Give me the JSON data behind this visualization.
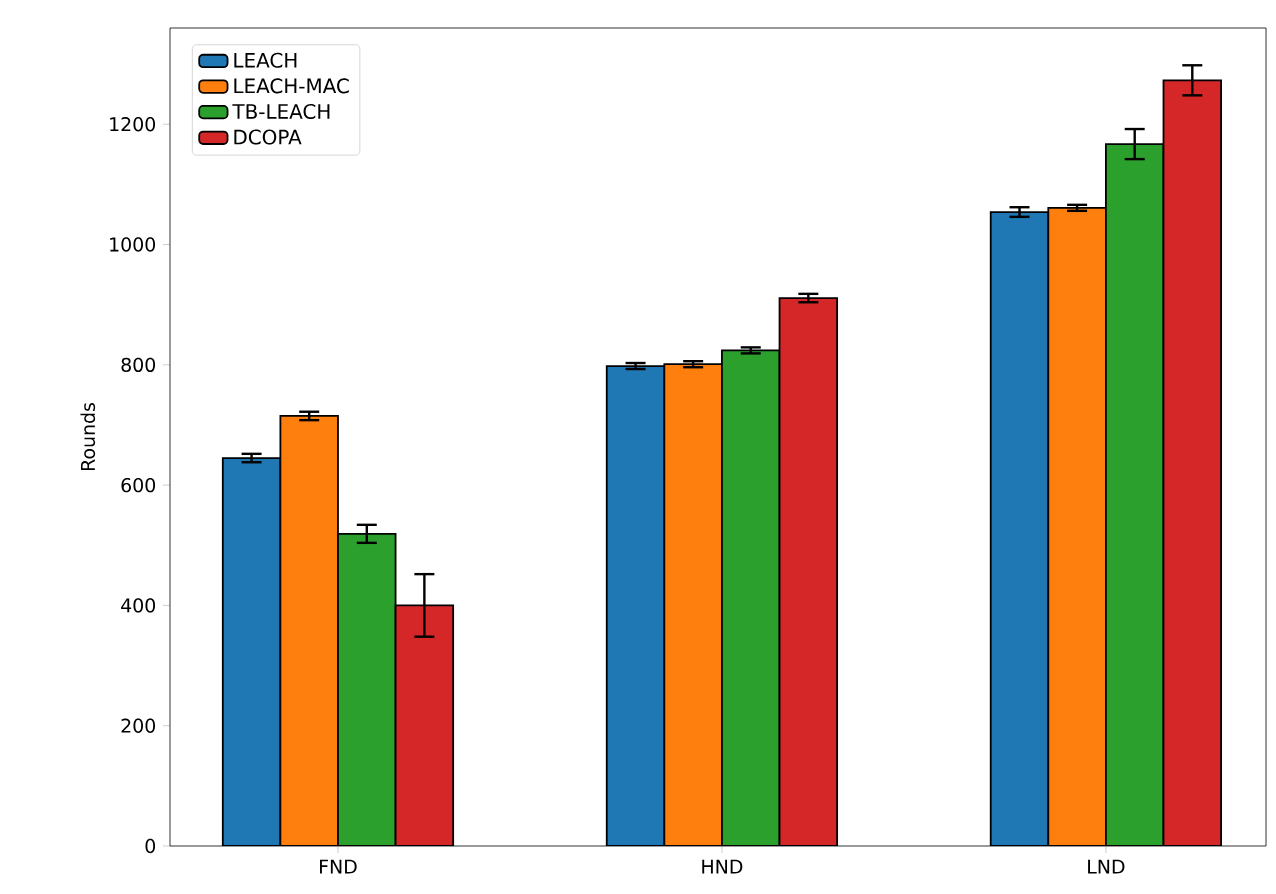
{
  "chart_data": {
    "type": "bar",
    "ylabel": "Rounds",
    "categories": [
      "FND",
      "HND",
      "LND"
    ],
    "series": [
      {
        "name": "LEACH",
        "color": "#1f77b4",
        "values": [
          645,
          798,
          1054
        ],
        "errors": [
          7,
          5,
          8
        ]
      },
      {
        "name": "LEACH-MAC",
        "color": "#ff7f0e",
        "values": [
          715,
          801,
          1061
        ],
        "errors": [
          7,
          5,
          5
        ]
      },
      {
        "name": "TB-LEACH",
        "color": "#2ca02c",
        "values": [
          519,
          824,
          1167
        ],
        "errors": [
          15,
          5,
          25
        ]
      },
      {
        "name": "DCOPA",
        "color": "#d62728",
        "values": [
          400,
          911,
          1273
        ],
        "errors": [
          52,
          7,
          25
        ]
      }
    ],
    "ylim": [
      0,
      1360
    ],
    "yticks": [
      0,
      200,
      400,
      600,
      800,
      1000,
      1200
    ],
    "legend": "top left"
  }
}
